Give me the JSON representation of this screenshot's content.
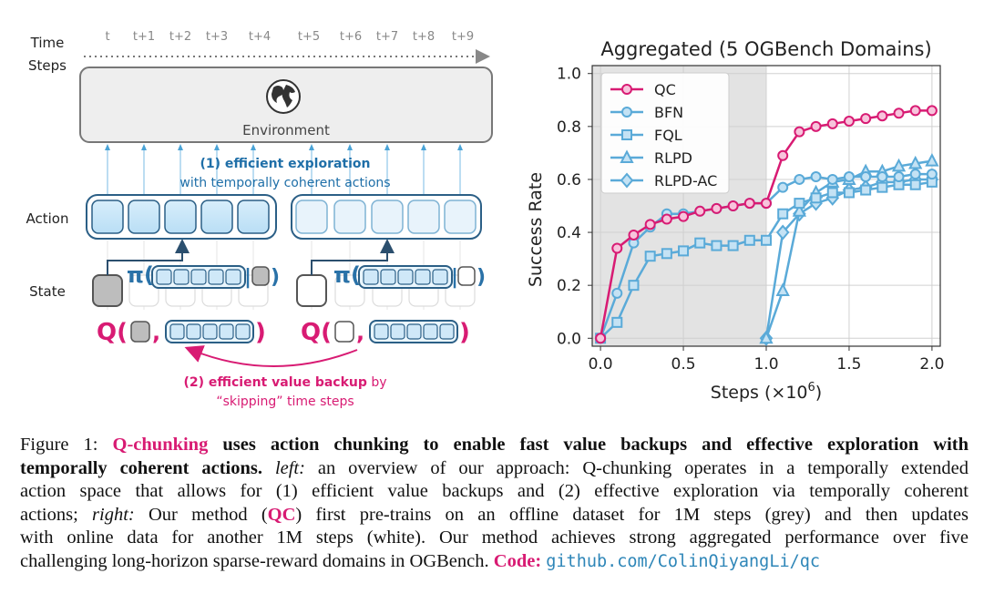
{
  "colors": {
    "pink": "#d81b73",
    "blue": "#4aa3d6",
    "dark_blue": "#1f6fa8",
    "grey_region": "#e3e3e3",
    "link": "#2e86b8"
  },
  "diagram": {
    "time_label_line1": "Time",
    "time_label_line2": "Steps",
    "ticks": [
      "t",
      "t+1",
      "t+2",
      "t+3",
      "t+4",
      "t+5",
      "t+6",
      "t+7",
      "t+8",
      "t+9"
    ],
    "environment_label": "Environment",
    "globe_icon": "globe-icon",
    "exploration_title": "(1) efficient exploration",
    "exploration_subtitle": "with temporally coherent actions",
    "action_label": "Action",
    "state_label": "State",
    "pi_symbol": "π(",
    "q_symbol": "Q(",
    "comma": ",",
    "close_paren": ")",
    "bar_paren": "|",
    "backup_bold": "(2) efficient value backup",
    "backup_rest": " by",
    "backup_line2": "“skipping” time steps"
  },
  "chart_data": {
    "type": "line",
    "title": "Aggregated (5 OGBench Domains)",
    "xlabel": "Steps (×10",
    "xlabel_exp": "6",
    "xlabel_close": ")",
    "ylabel": "Success Rate",
    "xlim": [
      -0.05,
      2.05
    ],
    "ylim": [
      -0.03,
      1.03
    ],
    "xticks": [
      "0.0",
      "0.5",
      "1.0",
      "1.5",
      "2.0"
    ],
    "yticks": [
      "0.0",
      "0.2",
      "0.4",
      "0.6",
      "0.8",
      "1.0"
    ],
    "offline_region": [
      -0.05,
      1.0
    ],
    "legend_position": "top-left",
    "series": [
      {
        "name": "QC",
        "marker": "circle",
        "color": "#d81b73",
        "x": [
          0,
          0.1,
          0.2,
          0.3,
          0.4,
          0.5,
          0.6,
          0.7,
          0.8,
          0.9,
          1.0,
          1.1,
          1.2,
          1.3,
          1.4,
          1.5,
          1.6,
          1.7,
          1.8,
          1.9,
          2.0
        ],
        "y": [
          0.0,
          0.34,
          0.39,
          0.43,
          0.45,
          0.46,
          0.48,
          0.49,
          0.5,
          0.51,
          0.51,
          0.69,
          0.78,
          0.8,
          0.81,
          0.82,
          0.83,
          0.84,
          0.85,
          0.86,
          0.86
        ]
      },
      {
        "name": "BFN",
        "marker": "circle",
        "color": "#5aaad8",
        "x": [
          0,
          0.1,
          0.2,
          0.3,
          0.4,
          0.5,
          0.6,
          0.7,
          0.8,
          0.9,
          1.0,
          1.1,
          1.2,
          1.3,
          1.4,
          1.5,
          1.6,
          1.7,
          1.8,
          1.9,
          2.0
        ],
        "y": [
          0.0,
          0.17,
          0.36,
          0.42,
          0.47,
          0.47,
          0.48,
          0.49,
          0.5,
          0.51,
          0.51,
          0.57,
          0.6,
          0.61,
          0.6,
          0.61,
          0.61,
          0.61,
          0.61,
          0.62,
          0.62
        ]
      },
      {
        "name": "FQL",
        "marker": "square",
        "color": "#5aaad8",
        "x": [
          0,
          0.1,
          0.2,
          0.3,
          0.4,
          0.5,
          0.6,
          0.7,
          0.8,
          0.9,
          1.0,
          1.1,
          1.2,
          1.3,
          1.4,
          1.5,
          1.6,
          1.7,
          1.8,
          1.9,
          2.0
        ],
        "y": [
          0.0,
          0.06,
          0.2,
          0.31,
          0.32,
          0.33,
          0.36,
          0.35,
          0.35,
          0.37,
          0.37,
          0.47,
          0.51,
          0.53,
          0.55,
          0.55,
          0.56,
          0.57,
          0.58,
          0.58,
          0.59
        ]
      },
      {
        "name": "RLPD",
        "marker": "triangle",
        "color": "#5aaad8",
        "x": [
          1.0,
          1.1,
          1.2,
          1.3,
          1.4,
          1.5,
          1.6,
          1.7,
          1.8,
          1.9,
          2.0
        ],
        "y": [
          0.0,
          0.18,
          0.48,
          0.55,
          0.59,
          0.6,
          0.63,
          0.63,
          0.65,
          0.66,
          0.67
        ]
      },
      {
        "name": "RLPD-AC",
        "marker": "diamond",
        "color": "#5aaad8",
        "x": [
          1.0,
          1.1,
          1.2,
          1.3,
          1.4,
          1.5,
          1.6,
          1.7,
          1.8,
          1.9,
          2.0
        ],
        "y": [
          0.0,
          0.4,
          0.47,
          0.51,
          0.53,
          0.56,
          0.57,
          0.59,
          0.59,
          0.6,
          0.6
        ]
      }
    ]
  },
  "caption": {
    "figure_label": "Figure 1: ",
    "method_name": "Q-chunking",
    "headline_a": " uses action chunking to enable fast value backups and effective exploration with",
    "headline_b": "temporally coherent actions.",
    "left_label": "left:",
    "left_text_a": " an overview of our approach: Q-chunking operates in a temporally extended",
    "line3": "action space that allows for (1) efficient value backups and (2) effective exploration via temporally coherent",
    "line4_a": "actions; ",
    "right_label": "right:",
    "line4_b": " Our method (",
    "qc": "QC",
    "line4_c": ") first pre-trains on an offline dataset for 1M steps (grey) and then updates",
    "line5": "with online data for another 1M steps (white). Our method achieves strong aggregated performance over five",
    "line6": "challenging long-horizon sparse-reward domains in OGBench. ",
    "code_label": "Code:",
    "code_url": "github.com/ColinQiyangLi/qc"
  }
}
